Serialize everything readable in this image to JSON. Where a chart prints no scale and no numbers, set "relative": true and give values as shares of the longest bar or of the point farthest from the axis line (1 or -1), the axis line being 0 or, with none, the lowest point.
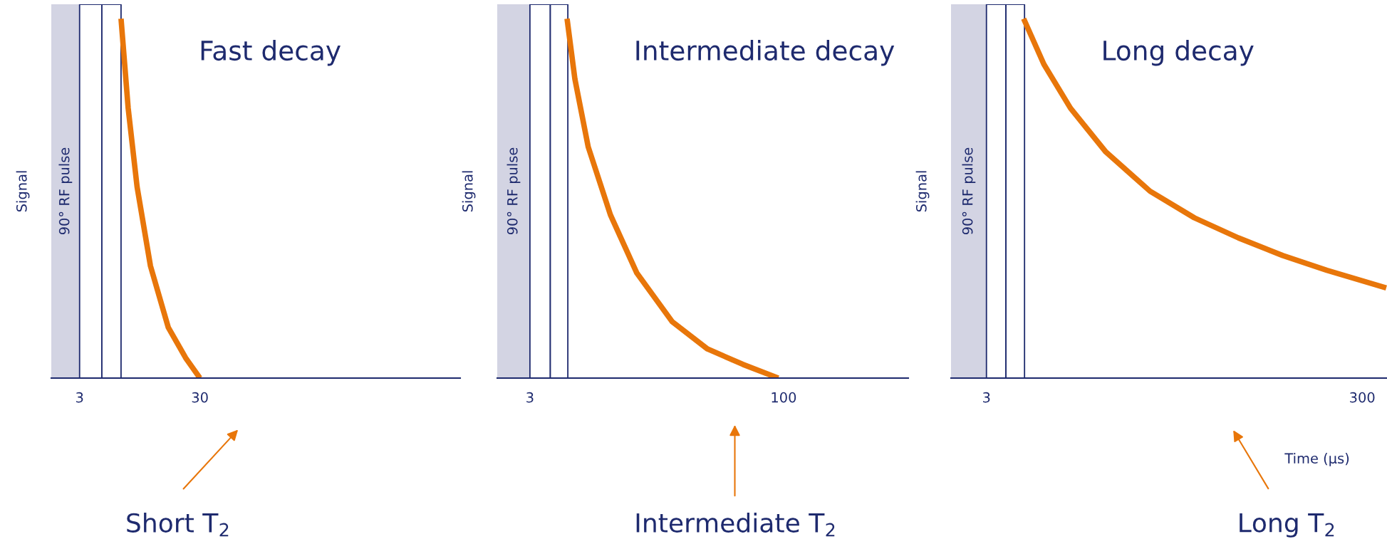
{
  "chart_data": [
    {
      "type": "line",
      "title": "Fast decay",
      "ylabel": "Signal",
      "relative": true,
      "tick_labels": "x",
      "xlim": [
        -3.35,
        88.4
      ],
      "xticks": [
        3,
        30
      ],
      "series": [
        {
          "color": "#e8760a",
          "x": [
            12.3,
            13.9,
            15.9,
            18.9,
            22.9,
            26.8,
            30
          ],
          "values": [
            1,
            0.751,
            0.532,
            0.312,
            0.141,
            0.056,
            0
          ]
        }
      ],
      "bands": [
        {
          "axis": "x",
          "from": -3.35,
          "to": 3,
          "label": "90° RF pulse",
          "color": "#d3d4e3"
        },
        {
          "axis": "x",
          "from": 3,
          "to": 8,
          "color": "#ffffff"
        },
        {
          "axis": "x",
          "from": 8,
          "to": 12.3,
          "color": "#ffffff"
        }
      ],
      "annotations": [
        "Short T$_{2}$"
      ]
    },
    {
      "type": "line",
      "title": "Intermediate decay",
      "ylabel": "Signal",
      "relative": true,
      "tick_labels": "x",
      "xlim": [
        -9.5,
        147.7
      ],
      "xticks": [
        3,
        100
      ],
      "series": [
        {
          "color": "#e8760a",
          "x": [
            17.2,
            20.2,
            25.3,
            33.8,
            43.9,
            57.4,
            70.9,
            84.5,
            98
          ],
          "values": [
            1,
            0.832,
            0.643,
            0.454,
            0.292,
            0.157,
            0.081,
            0.038,
            0
          ]
        }
      ],
      "bands": [
        {
          "axis": "x",
          "from": -9.5,
          "to": 3,
          "label": "90° RF pulse",
          "color": "#d3d4e3"
        },
        {
          "axis": "x",
          "from": 3,
          "to": 10.8,
          "color": "#ffffff"
        },
        {
          "axis": "x",
          "from": 10.8,
          "to": 17.5,
          "color": "#ffffff"
        }
      ],
      "annotations": [
        "Intermediate T$_{2}$"
      ]
    },
    {
      "type": "line",
      "title": "Long decay",
      "ylabel": "Signal",
      "xlabel": "Time (µs)",
      "relative": true,
      "tick_labels": "x",
      "xlim": [
        -25,
        319.6
      ],
      "xticks": [
        3,
        300
      ],
      "series": [
        {
          "color": "#e8760a",
          "x": [
            32.4,
            48.4,
            69.4,
            97.4,
            132.3,
            167.3,
            202.2,
            237.2,
            272.1,
            319
          ],
          "values": [
            1,
            0.873,
            0.751,
            0.629,
            0.52,
            0.446,
            0.39,
            0.341,
            0.3,
            0.251
          ]
        }
      ],
      "bands": [
        {
          "axis": "x",
          "from": -25,
          "to": 3,
          "label": "90° RF pulse",
          "color": "#d3d4e3"
        },
        {
          "axis": "x",
          "from": 3,
          "to": 18.4,
          "color": "#ffffff"
        },
        {
          "axis": "x",
          "from": 18.4,
          "to": 33.1,
          "color": "#ffffff"
        }
      ],
      "annotations": [
        "Long T$_{2}$"
      ]
    }
  ]
}
